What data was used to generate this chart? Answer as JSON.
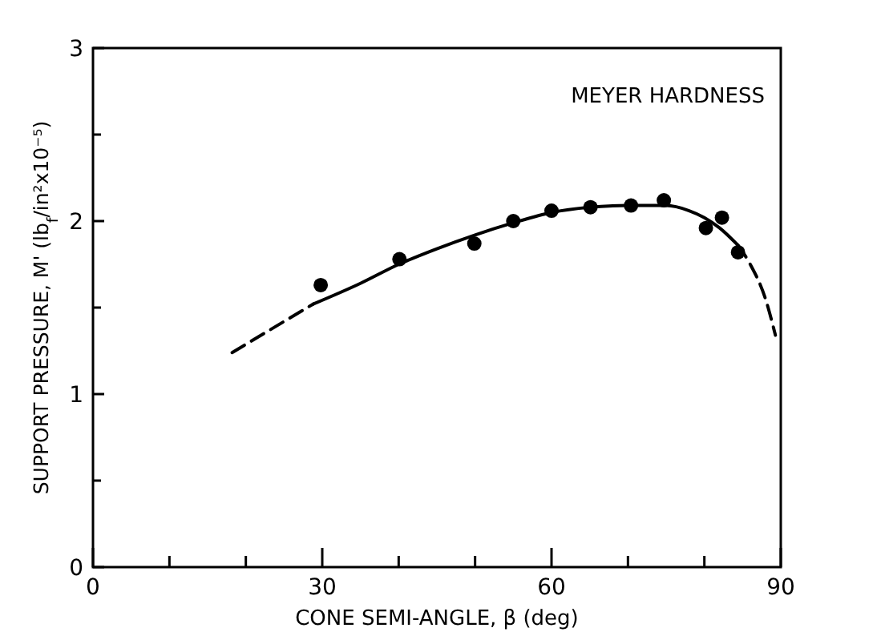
{
  "chart_data": {
    "type": "scatter",
    "xlabel": "CONE SEMI-ANGLE, β (deg)",
    "ylabel": "SUPPORT PRESSURE, M' (lb$_{f}$/in²x10⁻⁵)",
    "annotations": [
      "MEYER HARDNESS"
    ],
    "xlim": [
      0,
      90
    ],
    "ylim": [
      0,
      3
    ],
    "xticks": [
      0,
      {
        "value": 10,
        "label": null
      },
      {
        "value": 20,
        "label": null
      },
      30,
      {
        "value": 40,
        "label": null
      },
      {
        "value": 50,
        "label": null
      },
      60,
      {
        "value": 70,
        "label": null
      },
      {
        "value": 80,
        "label": null
      },
      90
    ],
    "yticks": [
      0,
      {
        "value": 0.5,
        "label": null
      },
      1,
      {
        "value": 1.5,
        "label": null
      },
      2,
      {
        "value": 2.5,
        "label": null
      },
      3
    ],
    "grid": false,
    "series": [
      {
        "color": "#000000",
        "marker": "circle",
        "x": [
          29.8,
          40.1,
          49.9,
          55.0,
          60.0,
          65.1,
          70.4,
          74.7,
          80.2,
          82.3,
          84.4
        ],
        "values": [
          1.63,
          1.78,
          1.87,
          2.0,
          2.06,
          2.08,
          2.09,
          2.12,
          1.96,
          2.02,
          1.82
        ]
      },
      {
        "type": "line",
        "color": "#000000",
        "line_style": "solid",
        "marker": "none",
        "x": [
          28.8,
          35,
          40,
          45,
          50,
          55,
          60,
          65,
          70,
          75,
          78,
          80,
          82,
          84.4
        ],
        "values": [
          1.52,
          1.64,
          1.75,
          1.84,
          1.92,
          1.99,
          2.05,
          2.08,
          2.09,
          2.09,
          2.06,
          2.02,
          1.96,
          1.86
        ]
      },
      {
        "type": "line",
        "color": "#000000",
        "line_style": "dashed",
        "marker": "none",
        "x": [
          18.2,
          28.8
        ],
        "values": [
          1.24,
          1.52
        ]
      },
      {
        "type": "line",
        "color": "#000000",
        "line_style": "dashed",
        "marker": "none",
        "x": [
          84.4,
          86,
          88,
          89.3
        ],
        "values": [
          1.86,
          1.75,
          1.55,
          1.34
        ]
      }
    ]
  }
}
